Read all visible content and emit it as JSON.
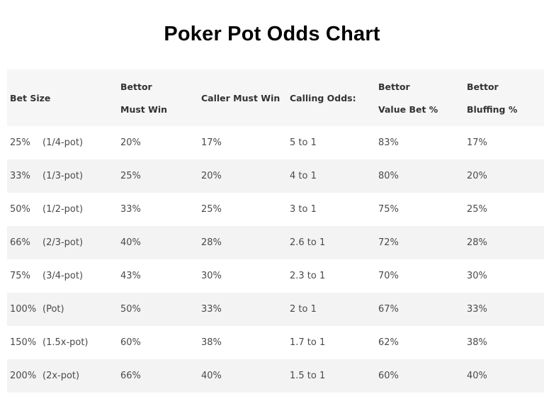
{
  "title": "Poker Pot Odds Chart",
  "columns": [
    {
      "line1": "Bet Size",
      "line2": ""
    },
    {
      "line1": "Bettor",
      "line2": "Must Win"
    },
    {
      "line1": "Caller Must Win",
      "line2": ""
    },
    {
      "line1": "Calling Odds:",
      "line2": ""
    },
    {
      "line1": "Bettor",
      "line2": "Value Bet %"
    },
    {
      "line1": "Bettor",
      "line2": "Bluffing %"
    }
  ],
  "rows": [
    {
      "bet": "25%",
      "fraction": "(1/4-pot)",
      "must_win": "20%",
      "caller_must_win": "17%",
      "calling_odds": "5 to 1",
      "value_bet": "83%",
      "bluffing": "17%"
    },
    {
      "bet": "33%",
      "fraction": "(1/3-pot)",
      "must_win": "25%",
      "caller_must_win": "20%",
      "calling_odds": "4 to 1",
      "value_bet": "80%",
      "bluffing": "20%"
    },
    {
      "bet": "50%",
      "fraction": "(1/2-pot)",
      "must_win": "33%",
      "caller_must_win": "25%",
      "calling_odds": "3 to 1",
      "value_bet": "75%",
      "bluffing": "25%"
    },
    {
      "bet": "66%",
      "fraction": "(2/3-pot)",
      "must_win": "40%",
      "caller_must_win": "28%",
      "calling_odds": "2.6 to 1",
      "value_bet": "72%",
      "bluffing": "28%"
    },
    {
      "bet": "75%",
      "fraction": "(3/4-pot)",
      "must_win": "43%",
      "caller_must_win": "30%",
      "calling_odds": "2.3 to 1",
      "value_bet": "70%",
      "bluffing": "30%"
    },
    {
      "bet": "100%",
      "fraction": "(Pot)",
      "must_win": "50%",
      "caller_must_win": "33%",
      "calling_odds": "2 to 1",
      "value_bet": "67%",
      "bluffing": "33%"
    },
    {
      "bet": "150%",
      "fraction": "(1.5x-pot)",
      "must_win": "60%",
      "caller_must_win": "38%",
      "calling_odds": "1.7 to 1",
      "value_bet": "62%",
      "bluffing": "38%"
    },
    {
      "bet": "200%",
      "fraction": "(2x-pot)",
      "must_win": "66%",
      "caller_must_win": "40%",
      "calling_odds": "1.5 to 1",
      "value_bet": "60%",
      "bluffing": "40%"
    }
  ]
}
